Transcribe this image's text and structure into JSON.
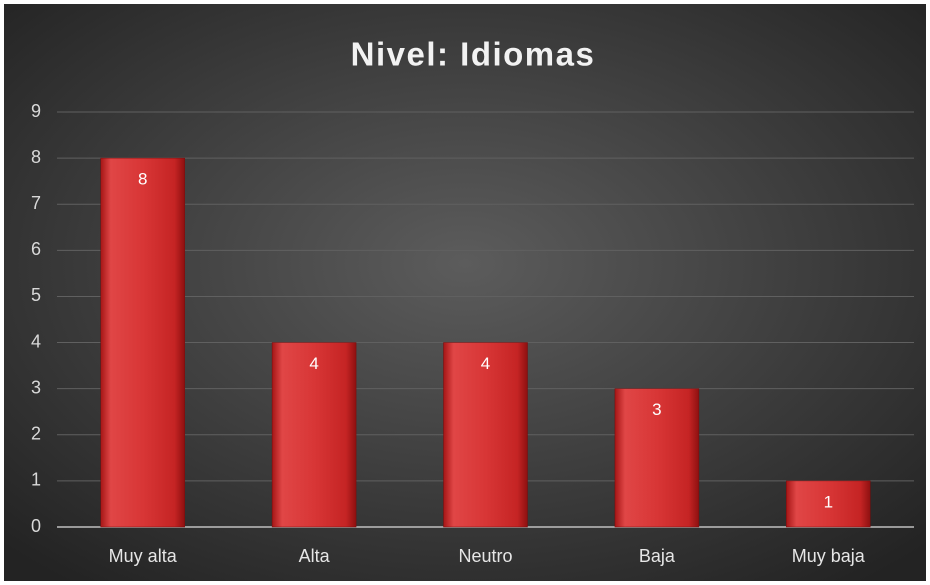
{
  "chart_data": {
    "type": "bar",
    "title": "Nivel: Idiomas",
    "categories": [
      "Muy alta",
      "Alta",
      "Neutro",
      "Baja",
      "Muy baja"
    ],
    "values": [
      8,
      4,
      4,
      3,
      1
    ],
    "color": "#d42a2a",
    "ylim": [
      0,
      9
    ],
    "yticks": [
      0,
      1,
      2,
      3,
      4,
      5,
      6,
      7,
      8,
      9
    ],
    "grid": true
  }
}
